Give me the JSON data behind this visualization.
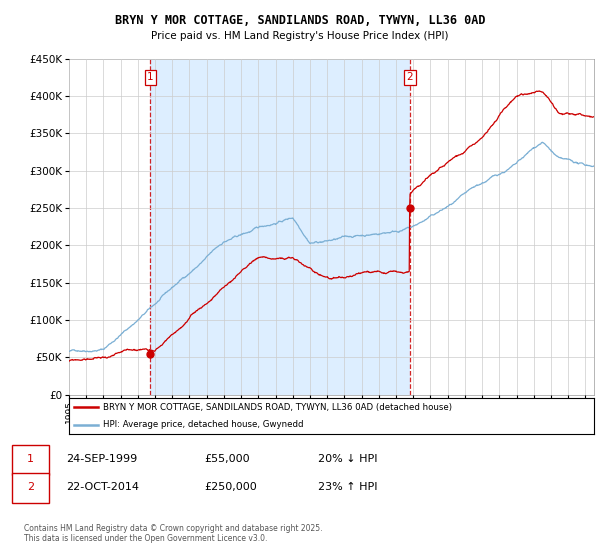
{
  "title": "BRYN Y MOR COTTAGE, SANDILANDS ROAD, TYWYN, LL36 0AD",
  "subtitle": "Price paid vs. HM Land Registry's House Price Index (HPI)",
  "ylim": [
    0,
    450000
  ],
  "yticks": [
    0,
    50000,
    100000,
    150000,
    200000,
    250000,
    300000,
    350000,
    400000,
    450000
  ],
  "sale1_date": "24-SEP-1999",
  "sale1_price": 55000,
  "sale1_label": "20% ↓ HPI",
  "sale1_x": 1999.73,
  "sale2_date": "22-OCT-2014",
  "sale2_price": 250000,
  "sale2_label": "23% ↑ HPI",
  "sale2_x": 2014.8,
  "legend_line1": "BRYN Y MOR COTTAGE, SANDILANDS ROAD, TYWYN, LL36 0AD (detached house)",
  "legend_line2": "HPI: Average price, detached house, Gwynedd",
  "footnote": "Contains HM Land Registry data © Crown copyright and database right 2025.\nThis data is licensed under the Open Government Licence v3.0.",
  "price_color": "#cc0000",
  "hpi_color": "#7bafd4",
  "shade_color": "#ddeeff",
  "vline_color": "#cc0000",
  "background_color": "#ffffff",
  "grid_color": "#cccccc",
  "xlim_start": 1995,
  "xlim_end": 2025.5
}
